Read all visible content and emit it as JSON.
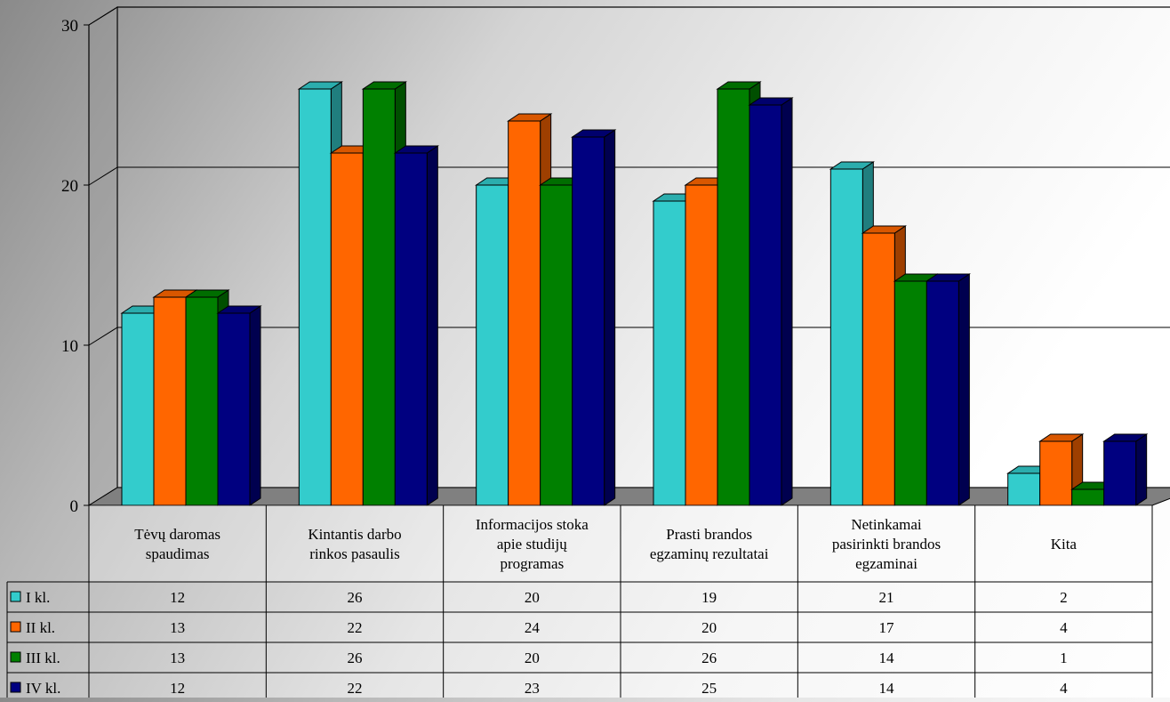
{
  "chart_data": {
    "type": "bar",
    "title": "",
    "xlabel": "",
    "ylabel": "",
    "ylim": [
      0,
      30
    ],
    "yticks": [
      0,
      10,
      20,
      30
    ],
    "grid": true,
    "three_d": true,
    "data_table": true,
    "categories": [
      [
        "Tėvų daromas",
        "spaudimas"
      ],
      [
        "Kintantis darbo",
        "rinkos pasaulis"
      ],
      [
        "Informacijos stoka",
        "apie studijų",
        "programas"
      ],
      [
        "Prasti brandos",
        "egzaminų rezultatai"
      ],
      [
        "Netinkamai",
        "pasirinkti brandos",
        "egzaminai"
      ],
      [
        "Kita"
      ]
    ],
    "series": [
      {
        "name": "I kl.",
        "color": "#33CCCC",
        "values": [
          12,
          26,
          20,
          19,
          21,
          2
        ]
      },
      {
        "name": "II kl.",
        "color": "#FF6600",
        "values": [
          13,
          22,
          24,
          20,
          17,
          4
        ]
      },
      {
        "name": "III kl.",
        "color": "#008000",
        "values": [
          13,
          26,
          20,
          26,
          14,
          1
        ]
      },
      {
        "name": "IV kl.",
        "color": "#000080",
        "values": [
          12,
          22,
          23,
          25,
          14,
          4
        ]
      }
    ]
  }
}
